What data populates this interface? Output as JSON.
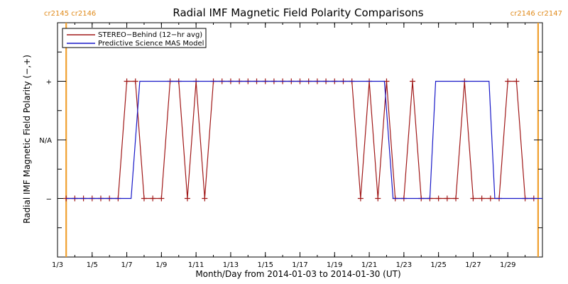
{
  "chart_data": {
    "type": "line",
    "title": "Radial IMF Magnetic Field Polarity Comparisons",
    "xlabel": "Month/Day from 2014-01-03 to 2014-01-30 (UT)",
    "ylabel": "Radial IMF Magnetic Field Polarity (−,+)",
    "xlim": [
      "2014-01-03",
      "2014-01-31"
    ],
    "ylim": [
      -2,
      2
    ],
    "x_ticks": [
      {
        "date": "2014-01-03",
        "label": "1/3"
      },
      {
        "date": "2014-01-05",
        "label": "1/5"
      },
      {
        "date": "2014-01-07",
        "label": "1/7"
      },
      {
        "date": "2014-01-09",
        "label": "1/9"
      },
      {
        "date": "2014-01-11",
        "label": "1/11"
      },
      {
        "date": "2014-01-13",
        "label": "1/13"
      },
      {
        "date": "2014-01-15",
        "label": "1/15"
      },
      {
        "date": "2014-01-17",
        "label": "1/17"
      },
      {
        "date": "2014-01-19",
        "label": "1/19"
      },
      {
        "date": "2014-01-21",
        "label": "1/21"
      },
      {
        "date": "2014-01-23",
        "label": "1/23"
      },
      {
        "date": "2014-01-25",
        "label": "1/25"
      },
      {
        "date": "2014-01-27",
        "label": "1/27"
      },
      {
        "date": "2014-01-29",
        "label": "1/29"
      }
    ],
    "y_ticks": [
      {
        "value": 1,
        "label": "+"
      },
      {
        "value": 0,
        "label": "N/A"
      },
      {
        "value": -1,
        "label": "−"
      }
    ],
    "grid": false,
    "legend": "top-left",
    "carrington_markers": [
      {
        "date": "2014-01-03 12:00",
        "label": "cr2145 cr2146",
        "color": "#f0a030"
      },
      {
        "date": "2014-01-30 18:00",
        "label": "cr2146 cr2147",
        "color": "#f0a030"
      }
    ],
    "series": [
      {
        "name": "STEREO−Behind (12−hr avg)",
        "color": "#a01818",
        "marker": "plus",
        "x": [
          "2014-01-03 12:00",
          "2014-01-04 00:00",
          "2014-01-04 12:00",
          "2014-01-05 00:00",
          "2014-01-05 12:00",
          "2014-01-06 00:00",
          "2014-01-06 12:00",
          "2014-01-07 00:00",
          "2014-01-07 12:00",
          "2014-01-08 00:00",
          "2014-01-08 12:00",
          "2014-01-09 00:00",
          "2014-01-09 12:00",
          "2014-01-10 00:00",
          "2014-01-10 12:00",
          "2014-01-11 00:00",
          "2014-01-11 12:00",
          "2014-01-12 00:00",
          "2014-01-12 12:00",
          "2014-01-13 00:00",
          "2014-01-13 12:00",
          "2014-01-14 00:00",
          "2014-01-14 12:00",
          "2014-01-15 00:00",
          "2014-01-15 12:00",
          "2014-01-16 00:00",
          "2014-01-16 12:00",
          "2014-01-17 00:00",
          "2014-01-17 12:00",
          "2014-01-18 00:00",
          "2014-01-18 12:00",
          "2014-01-19 00:00",
          "2014-01-19 12:00",
          "2014-01-20 00:00",
          "2014-01-20 12:00",
          "2014-01-21 00:00",
          "2014-01-21 12:00",
          "2014-01-22 00:00",
          "2014-01-22 12:00",
          "2014-01-23 00:00",
          "2014-01-23 12:00",
          "2014-01-24 00:00",
          "2014-01-24 12:00",
          "2014-01-25 00:00",
          "2014-01-25 12:00",
          "2014-01-26 00:00",
          "2014-01-26 12:00",
          "2014-01-27 00:00",
          "2014-01-27 12:00",
          "2014-01-28 00:00",
          "2014-01-28 12:00",
          "2014-01-29 00:00",
          "2014-01-29 12:00",
          "2014-01-30 00:00",
          "2014-01-30 12:00"
        ],
        "y": [
          -1,
          -1,
          -1,
          -1,
          -1,
          -1,
          -1,
          1,
          1,
          -1,
          -1,
          -1,
          1,
          1,
          -1,
          1,
          -1,
          1,
          1,
          1,
          1,
          1,
          1,
          1,
          1,
          1,
          1,
          1,
          1,
          1,
          1,
          1,
          1,
          1,
          -1,
          1,
          -1,
          1,
          -1,
          -1,
          1,
          -1,
          -1,
          -1,
          -1,
          -1,
          1,
          -1,
          -1,
          -1,
          -1,
          1,
          1,
          -1,
          -1
        ]
      },
      {
        "name": "Predictive Science MAS Model",
        "color": "#1818c8",
        "marker": "none",
        "x": [
          "2014-01-03 12:00",
          "2014-01-07 06:00",
          "2014-01-07 18:00",
          "2014-01-21 21:00",
          "2014-01-22 09:00",
          "2014-01-24 12:00",
          "2014-01-24 20:00",
          "2014-01-27 22:00",
          "2014-01-28 06:00",
          "2014-01-31 00:00"
        ],
        "y": [
          -1,
          -1,
          1,
          1,
          -1,
          -1,
          1,
          1,
          -1,
          -1
        ]
      }
    ]
  }
}
